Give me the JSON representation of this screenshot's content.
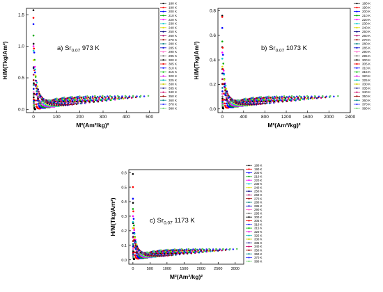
{
  "chart_data": [
    {
      "type": "scatter",
      "panel_label": "a) Sr",
      "panel_sub": "0.07",
      "panel_temp": " 973 K",
      "xlabel": "M²(Am²/kg)²",
      "ylabel": "H/M(Tkg/Am²)",
      "xlim": [
        -30,
        540
      ],
      "ylim": [
        -0.05,
        1.6
      ],
      "xticks": [
        0,
        100,
        200,
        300,
        400,
        500
      ],
      "yticks": [
        0.0,
        0.5,
        1.0,
        1.5
      ],
      "xtick_labels": [
        "0",
        "100",
        "200",
        "300",
        "400",
        "500"
      ],
      "ytick_labels": [
        "0.0",
        "0.5",
        "1.0",
        "1.5"
      ],
      "legend": [
        "180 K",
        "190 K",
        "200 K",
        "210 K",
        "220 K",
        "230 K",
        "240 K",
        "250 K",
        "260 K",
        "270 K",
        "280 K",
        "285 K",
        "290 K",
        "295 K",
        "300 K",
        "305 K",
        "310 K",
        "315 K",
        "320 K",
        "325 K",
        "330 K",
        "335 K",
        "340 K",
        "350 K",
        "360 K",
        "370 K",
        "380 K"
      ],
      "curve_params": {
        "first_y": [
          1.57,
          1.45,
          1.35,
          1.17,
          1.0,
          0.93
        ],
        "xmax_min": 8,
        "xmax_max": 495,
        "y_end_max": 0.21
      }
    },
    {
      "type": "scatter",
      "panel_label": "b) Sr",
      "panel_sub": "0.07",
      "panel_temp": " 1073 K",
      "xlabel": "M²(Am²/kg)²",
      "ylabel": "H/M(Tkg/Am²)",
      "xlim": [
        -80,
        2400
      ],
      "ylim": [
        -0.03,
        0.82
      ],
      "xticks": [
        0,
        400,
        800,
        1200,
        1600,
        2000,
        2400
      ],
      "yticks": [
        0.0,
        0.2,
        0.4,
        0.6,
        0.8
      ],
      "xtick_labels": [
        "0",
        "400",
        "800",
        "1200",
        "1600",
        "2000",
        "2400"
      ],
      "ytick_labels": [
        "0.0",
        "0.2",
        "0.4",
        "0.6",
        "0.8"
      ],
      "legend": [
        "180 K",
        "190 K",
        "200 K",
        "210 K",
        "220 K",
        "230 K",
        "240 K",
        "250 K",
        "260 K",
        "270 K",
        "280 K",
        "285 K",
        "290 K",
        "295 K",
        "300 K",
        "305 K",
        "310 K",
        "315 K",
        "320 K",
        "325 K",
        "330 K",
        "335 K",
        "340 K",
        "350 K",
        "360 K",
        "370 K",
        "380 K"
      ],
      "curve_params": {
        "first_y": [
          0.76,
          0.75,
          0.66,
          0.55,
          0.46,
          0.41
        ],
        "xmax_min": 20,
        "xmax_max": 2170,
        "y_end_max": 0.1
      }
    },
    {
      "type": "scatter",
      "panel_label": "c) Sr",
      "panel_sub": "0.07",
      "panel_temp": " 1173 K",
      "xlabel": "M²(Am²/kg)²",
      "ylabel": "H/M(Tkg/Am²)",
      "xlim": [
        -120,
        3250
      ],
      "ylim": [
        -0.03,
        0.62
      ],
      "xticks": [
        0,
        500,
        1000,
        1500,
        2000,
        2500,
        3000
      ],
      "yticks": [
        0.0,
        0.1,
        0.2,
        0.3,
        0.4,
        0.5,
        0.6
      ],
      "xtick_labels": [
        "0",
        "500",
        "1000",
        "1500",
        "2000",
        "2500",
        "3000"
      ],
      "ytick_labels": [
        "0.0",
        "0.1",
        "0.2",
        "0.3",
        "0.4",
        "0.5",
        "0.6"
      ],
      "legend": [
        "180 K",
        "190 K",
        "200 K",
        "210 K",
        "220 K",
        "230 K",
        "240 K",
        "250 K",
        "260 K",
        "270 K",
        "280 K",
        "285 K",
        "290 K",
        "295 K",
        "300 K",
        "305 K",
        "310 K",
        "315 K",
        "320 K",
        "325 K",
        "330 K",
        "335 K",
        "340 K",
        "350 K",
        "360 K",
        "370 K",
        "380 K"
      ],
      "curve_params": {
        "first_y": [
          0.59,
          0.5,
          0.42,
          0.35,
          0.3,
          0.26
        ],
        "xmax_min": 40,
        "xmax_max": 3050,
        "y_end_max": 0.07
      }
    }
  ],
  "series_colors": [
    "#000000",
    "#ff0000",
    "#0000ff",
    "#00aa00",
    "#ff00ff",
    "#00cccc",
    "#dddd00",
    "#000080",
    "#aa0066",
    "#990000",
    "#008080",
    "#0000cc",
    "#ff66cc",
    "#666666",
    "#000000",
    "#ee0000",
    "#1111ff",
    "#00bb00",
    "#dd00dd",
    "#00bbbb",
    "#cccc00",
    "#1a1a8c",
    "#cc0066",
    "#990000",
    "#008888",
    "#3333ff",
    "#66cc66"
  ]
}
